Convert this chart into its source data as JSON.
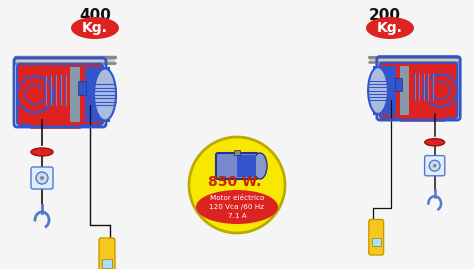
{
  "bg_color": "#f5f5f5",
  "title_left_num": "400",
  "title_right_num": "200",
  "kg_label": "Kg.",
  "kg_bg": "#dd2222",
  "kg_text_color": "#ffffff",
  "center_circle_bg": "#f8e800",
  "center_circle_border": "#ccaa00",
  "power_text": "850 W.",
  "power_color": "#cc2200",
  "motor_info_bg": "#dd2222",
  "motor_info_text": "Motor eléctrico\n120 Vca /60 Hz\n7.1 A",
  "motor_info_color": "#ffffff",
  "hoist_red": "#dd2222",
  "hoist_blue": "#3355cc",
  "hoist_blue_outline": "#3355cc",
  "motor_blue": "#3355cc",
  "motor_stripe": "#aabbdd",
  "wire_color": "#111111",
  "hook_color": "#5577cc",
  "pendant_color": "#f5c820",
  "pendant_border": "#cc9900",
  "pulley_red": "#dd2222",
  "rail_color": "#cccccc",
  "rail_border": "#888888",
  "gray_mid": "#8899aa",
  "title_fontsize": 11,
  "kg_fontsize": 10
}
